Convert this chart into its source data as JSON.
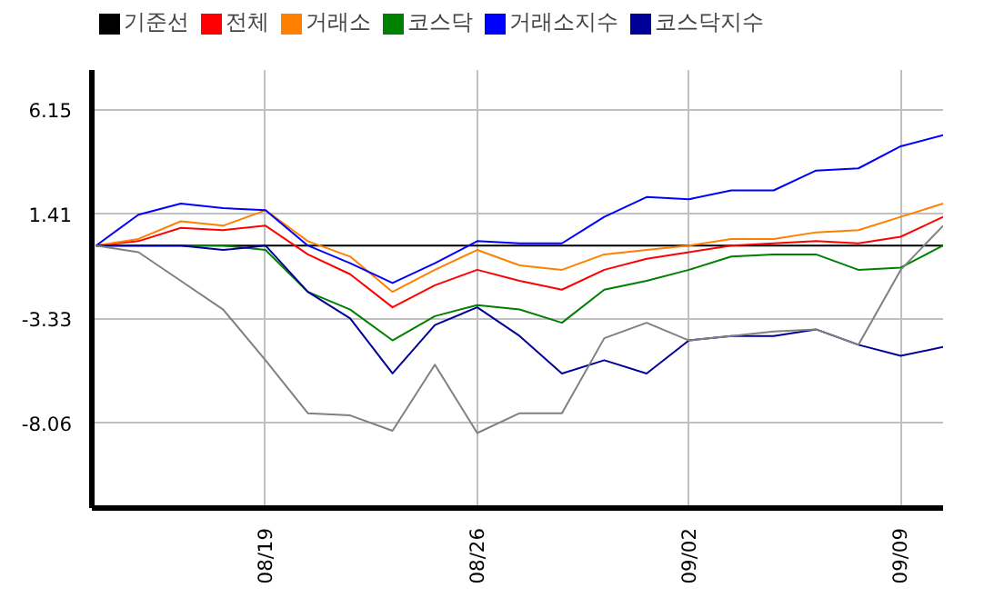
{
  "chart_data": {
    "type": "line",
    "categories": [
      null,
      null,
      null,
      null,
      "08/19",
      null,
      null,
      null,
      null,
      "08/26",
      null,
      null,
      null,
      null,
      "09/02",
      null,
      null,
      null,
      null,
      "09/09",
      null
    ],
    "ylim": [
      -11.9,
      7.96
    ],
    "yticks": [
      6.15,
      1.41,
      -3.33,
      -8.06
    ],
    "grid": true,
    "legend": "top",
    "marker": "none",
    "line_style": "solid",
    "series": [
      {
        "name": "기준선",
        "color": "#000000",
        "values": [
          0,
          0,
          0,
          0,
          0,
          0,
          0,
          0,
          0,
          0,
          0,
          0,
          0,
          0,
          0,
          0,
          0,
          0,
          0,
          0,
          0
        ]
      },
      {
        "name": "전체",
        "color": "#ff0000",
        "values": [
          0,
          0.2,
          0.8,
          0.7,
          0.9,
          -0.4,
          -1.3,
          -2.8,
          -1.8,
          -1.1,
          -1.6,
          -2.0,
          -1.1,
          -0.6,
          -0.3,
          0,
          0.1,
          0.2,
          0.1,
          0.4,
          1.3
        ]
      },
      {
        "name": "거래소",
        "color": "#ff8000",
        "values": [
          0,
          0.3,
          1.1,
          0.9,
          1.6,
          0.2,
          -0.5,
          -2.1,
          -1.1,
          -0.2,
          -0.9,
          -1.1,
          -0.4,
          -0.2,
          0,
          0.3,
          0.3,
          0.6,
          0.7,
          1.3,
          1.9
        ]
      },
      {
        "name": "코스닥",
        "color": "#008000",
        "values": [
          0,
          0,
          0,
          0,
          -0.2,
          -2.1,
          -2.9,
          -4.3,
          -3.2,
          -2.7,
          -2.9,
          -3.5,
          -2.0,
          -1.6,
          -1.1,
          -0.5,
          -0.4,
          -0.4,
          -1.1,
          -1.0,
          0
        ]
      },
      {
        "name": "거래소지수",
        "color": "#0000ff",
        "values": [
          0,
          1.4,
          1.9,
          1.7,
          1.6,
          0,
          -0.8,
          -1.7,
          -0.8,
          0.2,
          0.1,
          0.1,
          1.3,
          2.2,
          2.1,
          2.5,
          2.5,
          3.4,
          3.5,
          4.5,
          5.0
        ]
      },
      {
        "name": "코스닥지수",
        "color": "#000099",
        "values": [
          0,
          0,
          0,
          -0.2,
          0,
          -2.1,
          -3.3,
          -5.8,
          -3.6,
          -2.8,
          -4.1,
          -5.8,
          -5.2,
          -5.8,
          -4.3,
          -4.1,
          -4.1,
          -3.8,
          -4.5,
          -5.0,
          -4.6
        ]
      },
      {
        "color": "#808080",
        "values": [
          0,
          -0.3,
          -1.6,
          -2.9,
          -5.2,
          -7.6,
          -7.7,
          -8.4,
          -5.4,
          -8.5,
          -7.6,
          -7.6,
          -4.2,
          -3.5,
          -4.3,
          -4.1,
          -3.9,
          -3.8,
          -4.5,
          -1.1,
          0.9
        ]
      }
    ]
  }
}
